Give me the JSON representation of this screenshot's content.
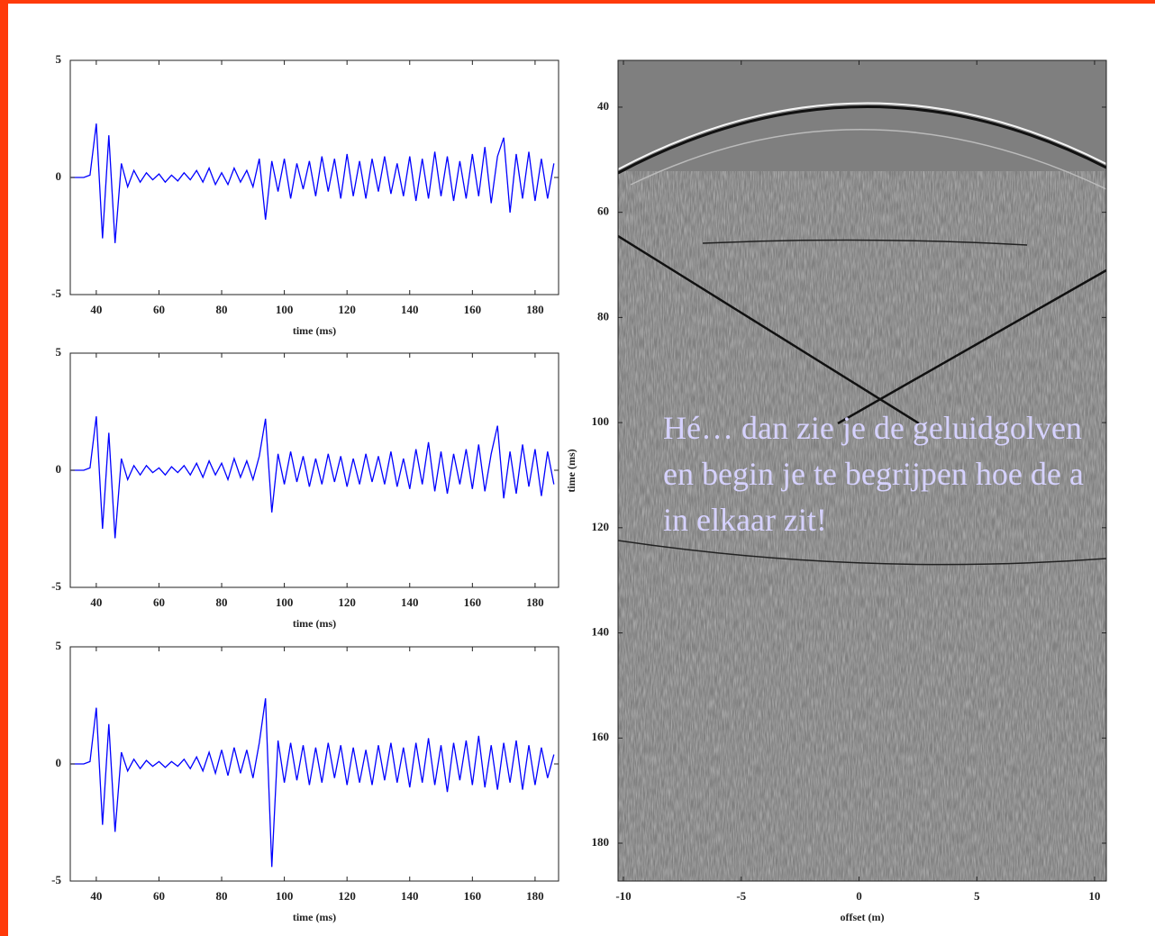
{
  "chart_data": [
    {
      "type": "line",
      "xlabel": "time (ms)",
      "color": "#0000ff",
      "x": [
        32,
        34,
        36,
        38,
        40,
        42,
        44,
        46,
        48,
        50,
        52,
        54,
        56,
        58,
        60,
        62,
        64,
        66,
        68,
        70,
        72,
        74,
        76,
        78,
        80,
        82,
        84,
        86,
        88,
        90,
        92,
        94,
        96,
        98,
        100,
        102,
        104,
        106,
        108,
        110,
        112,
        114,
        116,
        118,
        120,
        122,
        124,
        126,
        128,
        130,
        132,
        134,
        136,
        138,
        140,
        142,
        144,
        146,
        148,
        150,
        152,
        154,
        156,
        158,
        160,
        162,
        164,
        166,
        168,
        170,
        172,
        174,
        176,
        178,
        180,
        182,
        184,
        186
      ],
      "values": [
        0,
        0,
        0,
        0.1,
        2.3,
        -2.6,
        1.8,
        -2.8,
        0.6,
        -0.4,
        0.3,
        -0.2,
        0.2,
        -0.1,
        0.15,
        -0.2,
        0.1,
        -0.15,
        0.2,
        -0.1,
        0.3,
        -0.2,
        0.4,
        -0.3,
        0.2,
        -0.3,
        0.4,
        -0.2,
        0.3,
        -0.4,
        0.8,
        -1.8,
        0.7,
        -0.6,
        0.8,
        -0.9,
        0.6,
        -0.5,
        0.7,
        -0.8,
        0.9,
        -0.6,
        0.8,
        -0.9,
        1.0,
        -0.8,
        0.7,
        -0.9,
        0.8,
        -0.6,
        0.9,
        -0.7,
        0.6,
        -0.8,
        0.9,
        -1.0,
        0.8,
        -0.9,
        1.1,
        -0.8,
        0.9,
        -1.0,
        0.7,
        -0.9,
        1.0,
        -0.8,
        1.3,
        -1.1,
        0.9,
        1.7,
        -1.5,
        1.0,
        -0.9,
        1.1,
        -1.0,
        0.8,
        -0.9,
        0.6
      ],
      "xlim": [
        31.7,
        187.5
      ],
      "xticks": [
        40,
        60,
        80,
        100,
        120,
        140,
        160,
        180
      ],
      "ylim": [
        -5,
        5
      ],
      "yticks": [
        -5,
        0,
        5
      ]
    },
    {
      "type": "line",
      "xlabel": "time (ms)",
      "color": "#0000ff",
      "x": [
        32,
        34,
        36,
        38,
        40,
        42,
        44,
        46,
        48,
        50,
        52,
        54,
        56,
        58,
        60,
        62,
        64,
        66,
        68,
        70,
        72,
        74,
        76,
        78,
        80,
        82,
        84,
        86,
        88,
        90,
        92,
        94,
        96,
        98,
        100,
        102,
        104,
        106,
        108,
        110,
        112,
        114,
        116,
        118,
        120,
        122,
        124,
        126,
        128,
        130,
        132,
        134,
        136,
        138,
        140,
        142,
        144,
        146,
        148,
        150,
        152,
        154,
        156,
        158,
        160,
        162,
        164,
        166,
        168,
        170,
        172,
        174,
        176,
        178,
        180,
        182,
        184,
        186
      ],
      "values": [
        0,
        0,
        0,
        0.1,
        2.3,
        -2.5,
        1.6,
        -2.9,
        0.5,
        -0.4,
        0.2,
        -0.2,
        0.2,
        -0.1,
        0.1,
        -0.2,
        0.15,
        -0.1,
        0.2,
        -0.2,
        0.3,
        -0.3,
        0.4,
        -0.2,
        0.3,
        -0.4,
        0.5,
        -0.3,
        0.4,
        -0.4,
        0.6,
        2.2,
        -1.8,
        0.7,
        -0.6,
        0.8,
        -0.5,
        0.6,
        -0.7,
        0.5,
        -0.6,
        0.7,
        -0.5,
        0.6,
        -0.7,
        0.5,
        -0.6,
        0.7,
        -0.5,
        0.6,
        -0.6,
        0.8,
        -0.7,
        0.5,
        -0.8,
        0.9,
        -0.6,
        1.2,
        -0.9,
        0.8,
        -1.0,
        0.7,
        -0.6,
        0.9,
        -0.8,
        1.1,
        -0.9,
        0.7,
        1.9,
        -1.2,
        0.8,
        -1.0,
        1.1,
        -0.7,
        0.9,
        -1.1,
        0.8,
        -0.6
      ],
      "xlim": [
        31.7,
        187.5
      ],
      "xticks": [
        40,
        60,
        80,
        100,
        120,
        140,
        160,
        180
      ],
      "ylim": [
        -5,
        5
      ],
      "yticks": [
        -5,
        0,
        5
      ]
    },
    {
      "type": "line",
      "xlabel": "time (ms)",
      "color": "#0000ff",
      "x": [
        32,
        34,
        36,
        38,
        40,
        42,
        44,
        46,
        48,
        50,
        52,
        54,
        56,
        58,
        60,
        62,
        64,
        66,
        68,
        70,
        72,
        74,
        76,
        78,
        80,
        82,
        84,
        86,
        88,
        90,
        92,
        94,
        96,
        98,
        100,
        102,
        104,
        106,
        108,
        110,
        112,
        114,
        116,
        118,
        120,
        122,
        124,
        126,
        128,
        130,
        132,
        134,
        136,
        138,
        140,
        142,
        144,
        146,
        148,
        150,
        152,
        154,
        156,
        158,
        160,
        162,
        164,
        166,
        168,
        170,
        172,
        174,
        176,
        178,
        180,
        182,
        184,
        186
      ],
      "values": [
        0,
        0,
        0,
        0.1,
        2.4,
        -2.6,
        1.7,
        -2.9,
        0.5,
        -0.3,
        0.2,
        -0.2,
        0.15,
        -0.1,
        0.1,
        -0.15,
        0.1,
        -0.1,
        0.2,
        -0.2,
        0.3,
        -0.3,
        0.5,
        -0.4,
        0.6,
        -0.5,
        0.7,
        -0.4,
        0.6,
        -0.6,
        0.9,
        2.8,
        -4.4,
        1.0,
        -0.8,
        0.9,
        -0.7,
        0.8,
        -0.9,
        0.7,
        -0.8,
        0.9,
        -0.6,
        0.8,
        -0.9,
        0.7,
        -0.8,
        0.6,
        -0.9,
        0.8,
        -0.7,
        0.9,
        -0.8,
        0.7,
        -1.0,
        0.9,
        -0.8,
        1.1,
        -0.9,
        0.8,
        -1.2,
        0.9,
        -0.7,
        1.0,
        -0.9,
        1.2,
        -1.0,
        0.8,
        -1.1,
        0.9,
        -0.8,
        1.0,
        -1.1,
        0.8,
        -0.9,
        0.7,
        -0.6,
        0.4
      ],
      "xlim": [
        31.7,
        187.5
      ],
      "xticks": [
        40,
        60,
        80,
        100,
        120,
        140,
        160,
        180
      ],
      "ylim": [
        -5,
        5
      ],
      "yticks": [
        -5,
        0,
        5
      ]
    },
    {
      "type": "image",
      "xlabel": "offset (m)",
      "ylabel": "time (ms)",
      "xlim": [
        -10.23,
        10.5
      ],
      "xticks": [
        -10,
        -5,
        0,
        5,
        10
      ],
      "ylim": [
        187.2,
        31.1
      ],
      "yticks": [
        40,
        60,
        80,
        100,
        120,
        140,
        160,
        180
      ],
      "annotations": [
        "Hé… dan zie je de geluidgolven",
        "en begin je te begrijpen hoe de a",
        "in elkaar zit!"
      ]
    }
  ]
}
